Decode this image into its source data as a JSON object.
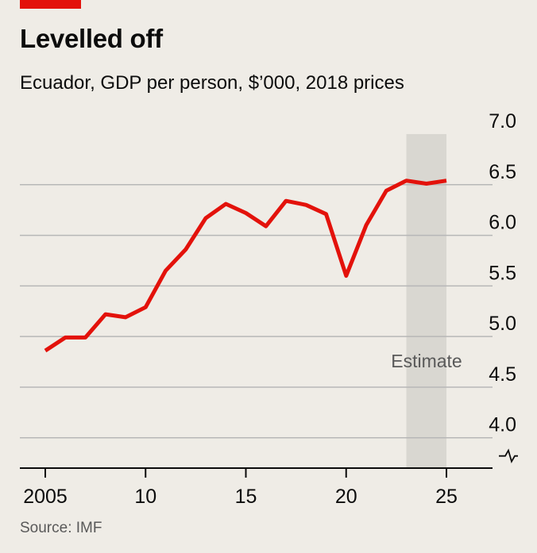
{
  "header": {
    "title": "Levelled off",
    "subtitle": "Ecuador, GDP per person, $’000, 2018 prices"
  },
  "footer": {
    "source": "Source: IMF"
  },
  "colors": {
    "line": "#e3120b",
    "brand": "#e3120b",
    "shade": "#d9d7d1",
    "grid": "#b7b7b7"
  },
  "chart_data": {
    "type": "line",
    "title": "Levelled off",
    "subtitle": "Ecuador, GDP per person, $’000, 2018 prices",
    "xlabel": "",
    "ylabel": "",
    "x": [
      2005,
      2006,
      2007,
      2008,
      2009,
      2010,
      2011,
      2012,
      2013,
      2014,
      2015,
      2016,
      2017,
      2018,
      2019,
      2020,
      2021,
      2022,
      2023,
      2024,
      2025
    ],
    "series": [
      {
        "name": "",
        "values": [
          4.86,
          4.99,
          4.99,
          5.22,
          5.19,
          5.29,
          5.65,
          5.86,
          6.17,
          6.31,
          6.22,
          6.09,
          6.34,
          6.3,
          6.21,
          5.6,
          6.1,
          6.44,
          6.54,
          6.51,
          6.54
        ]
      }
    ],
    "ylim": [
      3.7,
      7.0
    ],
    "xlim": [
      2005,
      2025
    ],
    "y_ticks": [
      4.0,
      4.5,
      5.0,
      5.5,
      6.0,
      6.5,
      7.0
    ],
    "y_tick_labels": [
      "4.0",
      "4.5",
      "5.0",
      "5.5",
      "6.0",
      "6.5",
      "7.0"
    ],
    "x_ticks": [
      2005,
      2010,
      2015,
      2020,
      2025
    ],
    "x_tick_labels": [
      "2005",
      "10",
      "15",
      "20",
      "25"
    ],
    "y_axis_break": true,
    "shaded_region": {
      "x_start": 2023,
      "x_end": 2025,
      "label": "Estimate"
    },
    "grid": true,
    "y_axis_side": "right"
  }
}
